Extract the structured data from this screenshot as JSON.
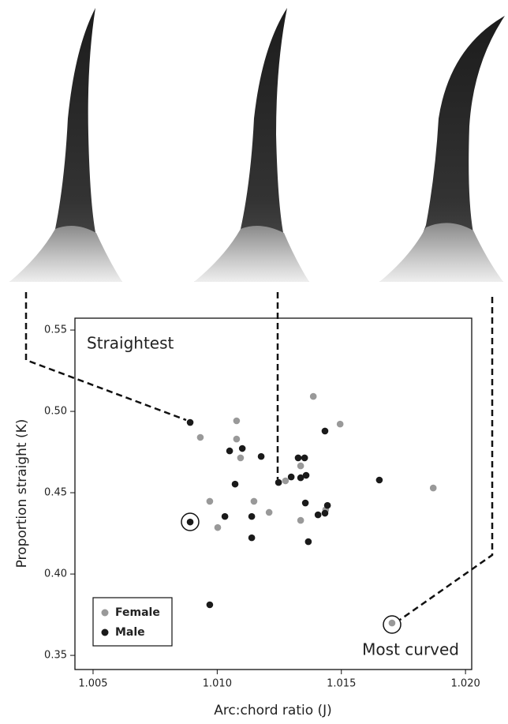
{
  "chart_data": {
    "type": "scatter",
    "xlabel": "Arc:chord ratio (J)",
    "ylabel": "Proportion straight (K)",
    "annotations": [
      "Straightest",
      "Most curved"
    ],
    "xlim": [
      1.00427,
      1.02025
    ],
    "ylim": [
      0.3413,
      0.5573
    ],
    "xticks": [
      1.005,
      {
        "value": 1.01,
        "label": "1.010"
      },
      1.015,
      {
        "value": 1.02,
        "label": "1.020"
      }
    ],
    "yticks": [
      0.35,
      {
        "value": 0.4,
        "label": "0.40"
      },
      0.45,
      {
        "value": 0.5,
        "label": "0.50"
      },
      0.55
    ],
    "series": [
      {
        "name": "Female",
        "color": "#999999",
        "x": [
          1.00932,
          1.01078,
          1.01078,
          1.01094,
          1.0097,
          1.01002,
          1.01148,
          1.01209,
          1.01275,
          1.01336,
          1.01387,
          1.01495,
          1.0187,
          1.01336,
          1.01437,
          1.01704
        ],
        "values": [
          0.484,
          0.4942,
          0.483,
          0.4714,
          0.4447,
          0.4286,
          0.4447,
          0.4379,
          0.4573,
          0.4665,
          0.5092,
          0.4922,
          0.4529,
          0.433,
          0.4395,
          0.3699
        ]
      },
      {
        "name": "Male",
        "color": "#1a1a1a",
        "x": [
          1.00891,
          1.00891,
          1.0105,
          1.01101,
          1.01072,
          1.01031,
          1.01139,
          1.01139,
          1.01177,
          1.01247,
          1.01298,
          1.01326,
          1.01352,
          1.01336,
          1.01358,
          1.01355,
          1.01367,
          1.01406,
          1.01434,
          1.01444,
          1.01434,
          1.01653,
          1.0097
        ],
        "values": [
          0.4932,
          0.432,
          0.4757,
          0.4772,
          0.4553,
          0.4354,
          0.4354,
          0.4223,
          0.4723,
          0.4563,
          0.4597,
          0.4714,
          0.4714,
          0.4592,
          0.4607,
          0.4437,
          0.4199,
          0.4364,
          0.4374,
          0.4422,
          0.4879,
          0.4578,
          0.3811
        ]
      }
    ]
  }
}
